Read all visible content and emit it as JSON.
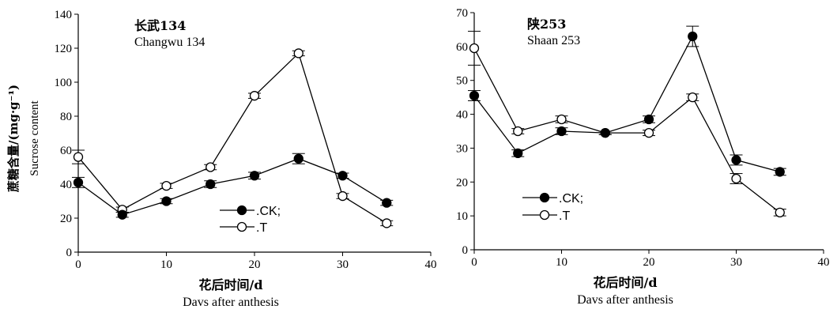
{
  "ylabel_cn": "蔗糖含量/(mg·g⁻¹)",
  "ylabel_en": "Sucrose content",
  "chart_data": [
    {
      "type": "line",
      "title_cn": "长武134",
      "title_en": "Changwu 134",
      "xlabel_cn": "花后时间/d",
      "xlabel_en": "Davs after anthesis",
      "xlim": [
        0,
        40
      ],
      "ylim": [
        0,
        140
      ],
      "xticks": [
        0,
        10,
        20,
        30,
        40
      ],
      "yticks": [
        0,
        20,
        40,
        60,
        80,
        100,
        120,
        140
      ],
      "x": [
        0,
        5,
        10,
        15,
        20,
        25,
        30,
        35
      ],
      "series": [
        {
          "name": ".CK;",
          "marker": "filled-circle",
          "values": [
            41,
            22,
            30,
            40,
            45,
            55,
            45,
            29
          ],
          "errors": [
            3,
            1.5,
            1.5,
            2,
            2,
            3,
            1.5,
            1.5
          ]
        },
        {
          "name": ".T",
          "marker": "open-circle",
          "values": [
            56,
            25,
            39,
            50,
            92,
            117,
            33,
            17
          ],
          "errors": [
            4,
            1.5,
            1.5,
            1.5,
            1.5,
            1.5,
            1.5,
            1.5
          ]
        }
      ]
    },
    {
      "type": "line",
      "title_cn": "陕253",
      "title_en": "Shaan 253",
      "xlabel_cn": "花后时间/d",
      "xlabel_en": "Davs after anthesis",
      "xlim": [
        0,
        40
      ],
      "ylim": [
        0,
        70
      ],
      "xticks": [
        0,
        10,
        20,
        30,
        40
      ],
      "yticks": [
        0,
        10,
        20,
        30,
        40,
        50,
        60,
        70
      ],
      "x": [
        0,
        5,
        10,
        15,
        20,
        25,
        30,
        35
      ],
      "series": [
        {
          "name": ".CK;",
          "marker": "filled-circle",
          "values": [
            45.5,
            28.5,
            35,
            34.5,
            38.5,
            63,
            26.5,
            23
          ],
          "errors": [
            1.5,
            1,
            1,
            0.5,
            1,
            3,
            1.5,
            1
          ]
        },
        {
          "name": ".T",
          "marker": "open-circle",
          "values": [
            59.5,
            35,
            38.5,
            34.5,
            34.5,
            45,
            21,
            11
          ],
          "errors": [
            5,
            0.8,
            1,
            0.5,
            0.8,
            1,
            1.5,
            1
          ]
        }
      ]
    }
  ]
}
